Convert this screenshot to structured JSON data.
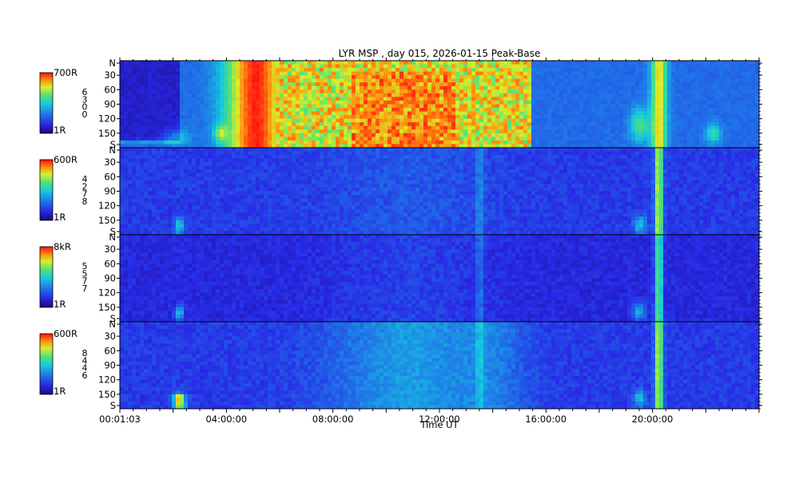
{
  "chart_data": {
    "type": "heatmap",
    "title": "LYR MSP , day 015, 2026-01-15 Peak-Base",
    "xlabel": "Time UT",
    "x_ticks": [
      "00:01:03",
      "04:00:00",
      "08:00:00",
      "12:00:00",
      "16:00:00",
      "20:00:00"
    ],
    "y_ticks": [
      "N",
      "30",
      "60",
      "90",
      "120",
      "150",
      "S"
    ],
    "colormap": [
      "#1a0a78",
      "#2828e6",
      "#1f7ae8",
      "#16c9e0",
      "#4ee07a",
      "#d8f02a",
      "#ff8a10",
      "#ff1010"
    ],
    "panels": [
      {
        "colorbar_max": "700R",
        "colorbar_min": "1R",
        "wavelength_label": "6300"
      },
      {
        "colorbar_max": "600R",
        "colorbar_min": "1R",
        "wavelength_label": "4278"
      },
      {
        "colorbar_max": "8kR",
        "colorbar_min": "1R",
        "wavelength_label": "5577"
      },
      {
        "colorbar_max": "600R",
        "colorbar_min": "1R",
        "wavelength_label": "8446"
      }
    ]
  }
}
